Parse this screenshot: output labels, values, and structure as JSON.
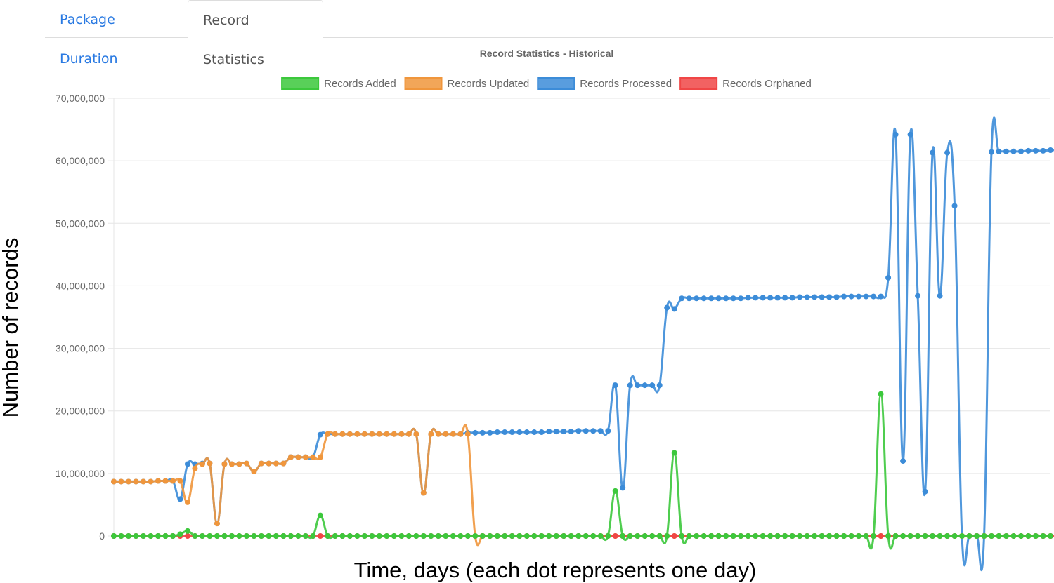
{
  "tabs": [
    {
      "label": "Package Duration"
    },
    {
      "label": "Record Statistics"
    }
  ],
  "chart_data": {
    "type": "line",
    "title": "Record Statistics - Historical",
    "xlabel": "Time, days (each dot represents one day)",
    "ylabel": "Number of records",
    "ylim": [
      0,
      70000000
    ],
    "yticks": [
      {
        "value": 0,
        "label": "0"
      },
      {
        "value": 10000000,
        "label": "10,000,000"
      },
      {
        "value": 20000000,
        "label": "20,000,000"
      },
      {
        "value": 30000000,
        "label": "30,000,000"
      },
      {
        "value": 40000000,
        "label": "40,000,000"
      },
      {
        "value": 50000000,
        "label": "50,000,000"
      },
      {
        "value": 60000000,
        "label": "60,000,000"
      },
      {
        "value": 70000000,
        "label": "70,000,000"
      }
    ],
    "grid": true,
    "legend_position": "top",
    "series": [
      {
        "name": "Records Added",
        "color": "#3cc83c",
        "values": [
          0,
          0,
          0,
          0,
          0,
          0,
          0,
          0,
          0,
          300000,
          800000,
          0,
          0,
          0,
          0,
          0,
          0,
          0,
          0,
          0,
          0,
          0,
          0,
          0,
          0,
          0,
          0,
          0,
          3300000,
          0,
          0,
          0,
          0,
          0,
          0,
          0,
          0,
          0,
          0,
          0,
          0,
          0,
          0,
          0,
          0,
          0,
          0,
          0,
          0,
          0,
          0,
          0,
          0,
          0,
          0,
          0,
          0,
          0,
          0,
          0,
          0,
          0,
          0,
          0,
          0,
          0,
          0,
          0,
          7200000,
          0,
          0,
          0,
          0,
          0,
          0,
          0,
          13300000,
          0,
          0,
          0,
          0,
          0,
          0,
          0,
          0,
          0,
          0,
          0,
          0,
          0,
          0,
          0,
          0,
          0,
          0,
          0,
          0,
          0,
          0,
          0,
          0,
          0,
          0,
          0,
          22700000,
          0,
          0,
          0,
          0,
          0,
          0,
          0,
          0,
          0,
          0,
          0,
          0,
          0,
          0,
          0,
          0,
          0,
          0,
          0,
          0,
          0,
          0,
          0
        ]
      },
      {
        "name": "Records Updated",
        "color": "#f0963c",
        "values": [
          8700000,
          8700000,
          8700000,
          8700000,
          8700000,
          8700000,
          8800000,
          8800000,
          8800000,
          8800000,
          5400000,
          10800000,
          11500000,
          11600000,
          2000000,
          11500000,
          11500000,
          11500000,
          11600000,
          10300000,
          11600000,
          11600000,
          11600000,
          11600000,
          12600000,
          12600000,
          12600000,
          12600000,
          12600000,
          16300000,
          16300000,
          16300000,
          16300000,
          16300000,
          16300000,
          16300000,
          16300000,
          16300000,
          16300000,
          16300000,
          16300000,
          16300000,
          6900000,
          16300000,
          16300000,
          16300000,
          16300000,
          16300000,
          16300000,
          0,
          0,
          0,
          0,
          0,
          0,
          0,
          0,
          0,
          0,
          0,
          0,
          0,
          0,
          0,
          0,
          0,
          0,
          0,
          0,
          0,
          0,
          0,
          0,
          0,
          0,
          0,
          0,
          0,
          0,
          0,
          0,
          0,
          0,
          0,
          0,
          0,
          0,
          0,
          0,
          0,
          0,
          0,
          0,
          0,
          0,
          0,
          0,
          0,
          0,
          0,
          0,
          0,
          0,
          0,
          0,
          0,
          0,
          0,
          0,
          0,
          0,
          0,
          0,
          0,
          0,
          0,
          0,
          0,
          0,
          0,
          0,
          0,
          0,
          0,
          0,
          0,
          0,
          0,
          0,
          0,
          0
        ]
      },
      {
        "name": "Records Processed",
        "color": "#3c8cd8",
        "values": [
          8700000,
          8700000,
          8700000,
          8700000,
          8700000,
          8700000,
          8800000,
          8800000,
          8800000,
          5900000,
          11500000,
          11500000,
          11600000,
          11600000,
          2000000,
          11500000,
          11500000,
          11500000,
          11600000,
          10300000,
          11600000,
          11600000,
          11600000,
          11600000,
          12600000,
          12600000,
          12600000,
          12600000,
          16200000,
          16300000,
          16300000,
          16300000,
          16300000,
          16300000,
          16300000,
          16300000,
          16300000,
          16300000,
          16300000,
          16300000,
          16300000,
          16300000,
          6900000,
          16300000,
          16300000,
          16300000,
          16300000,
          16300000,
          16500000,
          16500000,
          16500000,
          16500000,
          16600000,
          16600000,
          16600000,
          16600000,
          16600000,
          16600000,
          16600000,
          16700000,
          16700000,
          16700000,
          16700000,
          16800000,
          16800000,
          16800000,
          16800000,
          16800000,
          24100000,
          7700000,
          24100000,
          24100000,
          24100000,
          24100000,
          24100000,
          36500000,
          36300000,
          38000000,
          38000000,
          38000000,
          38000000,
          38000000,
          38000000,
          38000000,
          38000000,
          38000000,
          38100000,
          38100000,
          38100000,
          38100000,
          38100000,
          38100000,
          38100000,
          38200000,
          38200000,
          38200000,
          38200000,
          38200000,
          38200000,
          38300000,
          38300000,
          38300000,
          38300000,
          38300000,
          38300000,
          41300000,
          64200000,
          12000000,
          64200000,
          38400000,
          7100000,
          61300000,
          38400000,
          61300000,
          52800000,
          0,
          0,
          0,
          0,
          61400000,
          61500000,
          61500000,
          61500000,
          61500000,
          61600000,
          61600000,
          61600000,
          61700000,
          61700000,
          61700000,
          61700000,
          61700000
        ]
      },
      {
        "name": "Records Orphaned",
        "color": "#f04646",
        "values": [
          0,
          0,
          0,
          0,
          0,
          0,
          0,
          0,
          0,
          0,
          0,
          0,
          0,
          0,
          0,
          0,
          0,
          0,
          0,
          0,
          0,
          0,
          0,
          0,
          0,
          0,
          0,
          0,
          0,
          0,
          0,
          0,
          0,
          0,
          0,
          0,
          0,
          0,
          0,
          0,
          0,
          0,
          0,
          0,
          0,
          0,
          0,
          0,
          0,
          0,
          0,
          0,
          0,
          0,
          0,
          0,
          0,
          0,
          0,
          0,
          0,
          0,
          0,
          0,
          0,
          0,
          0,
          0,
          0,
          0,
          0,
          0,
          0,
          0,
          0,
          0,
          0,
          0,
          0,
          0,
          0,
          0,
          0,
          0,
          0,
          0,
          0,
          0,
          0,
          0,
          0,
          0,
          0,
          0,
          0,
          0,
          0,
          0,
          0,
          0,
          0,
          0,
          0,
          0,
          0,
          0,
          0,
          0,
          0,
          0,
          0,
          0,
          0,
          0,
          0,
          0,
          0,
          0,
          0,
          0,
          0,
          0,
          0,
          0,
          0,
          0,
          0,
          0,
          0,
          0,
          0
        ]
      }
    ]
  }
}
